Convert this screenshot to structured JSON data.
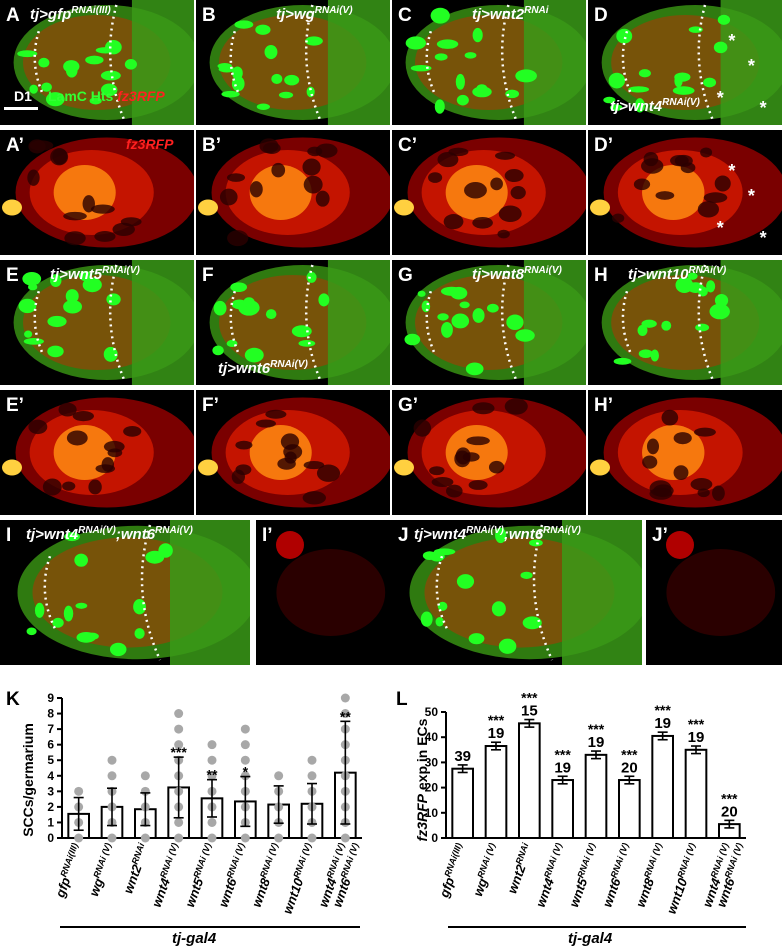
{
  "panels": [
    {
      "id": "A",
      "label": "A",
      "genotype": "tj>gfp",
      "sup": "RNAi(III)",
      "stain": true,
      "scalebar": "D1"
    },
    {
      "id": "B",
      "label": "B",
      "genotype": "tj>wg",
      "sup": "RNAi(V)"
    },
    {
      "id": "C",
      "label": "C",
      "genotype": "tj>wnt2",
      "sup": "RNAi"
    },
    {
      "id": "D",
      "label": "D",
      "genotype": "tj>wnt4",
      "sup": "RNAi(V)"
    },
    {
      "id": "A2",
      "label": "A’",
      "redlabel": "fz3RFP"
    },
    {
      "id": "B2",
      "label": "B’"
    },
    {
      "id": "C2",
      "label": "C’"
    },
    {
      "id": "D2",
      "label": "D’"
    },
    {
      "id": "E",
      "label": "E",
      "genotype": "tj>wnt5",
      "sup": "RNAi(V)"
    },
    {
      "id": "F",
      "label": "F",
      "genotype": "tj>wnt6",
      "sup": "RNAi(V)"
    },
    {
      "id": "G",
      "label": "G",
      "genotype": "tj>wnt8",
      "sup": "RNAi(V)"
    },
    {
      "id": "H",
      "label": "H",
      "genotype": "tj>wnt10",
      "sup": "RNAi(V)"
    },
    {
      "id": "E2",
      "label": "E’"
    },
    {
      "id": "F2",
      "label": "F’"
    },
    {
      "id": "G2",
      "label": "G’"
    },
    {
      "id": "H2",
      "label": "H’"
    },
    {
      "id": "I",
      "label": "I",
      "genotype": "tj>wnt4",
      "sup": "RNAi(V)",
      "genotype2": ";wnt6",
      "sup2": "RNAi(V)"
    },
    {
      "id": "I2",
      "label": "I’"
    },
    {
      "id": "J",
      "label": "J",
      "genotype": "tj>wnt4",
      "sup": "RNAi(V)",
      "genotype2": ";wnt6",
      "sup2": "RNAi(V)"
    },
    {
      "id": "J2",
      "label": "J’"
    }
  ],
  "stain_labels": {
    "lamc_hts": "LamC Hts",
    "fz3rfp": "fz3RFP"
  },
  "charts": {
    "K": {
      "label": "K",
      "ylabel": "SCCs/germarium",
      "footer": "tj-gal4"
    },
    "L": {
      "label": "L",
      "ylabel_italic": "fz3RFP",
      "ylabel_rest": " exp in ECs",
      "footer": "tj-gal4"
    }
  },
  "chart_data": [
    {
      "type": "bar",
      "panel": "K",
      "categories": [
        {
          "base": "gfp",
          "sup": "RNAi(III)"
        },
        {
          "base": "wg",
          "sup": "RNAi (V)"
        },
        {
          "base": "wnt2",
          "sup": "RNAi"
        },
        {
          "base": "wnt4",
          "sup": "RNAi (V)"
        },
        {
          "base": "wnt5",
          "sup": "RNAi (V)"
        },
        {
          "base": "wnt6",
          "sup": "RNAi (V)"
        },
        {
          "base": "wnt8",
          "sup": "RNAi (V)"
        },
        {
          "base": "wnt10",
          "sup": "RNAi (V)"
        },
        {
          "base": "wnt4/wnt6",
          "sup": "RNAi (V)"
        }
      ],
      "values": [
        1.55,
        2.0,
        1.85,
        3.25,
        2.55,
        2.35,
        2.15,
        2.2,
        4.2
      ],
      "errors": [
        1.05,
        1.2,
        1.05,
        1.95,
        1.2,
        1.6,
        1.2,
        1.3,
        3.3
      ],
      "significance": [
        "",
        "",
        "",
        "***",
        "**",
        "*",
        "",
        "",
        "**"
      ],
      "ylabel": "SCCs/germarium",
      "ylim": [
        0,
        9
      ],
      "yticks": [
        0,
        1,
        2,
        3,
        4,
        5,
        6,
        7,
        8,
        9
      ],
      "dots": [
        [
          0,
          1,
          2,
          3
        ],
        [
          0,
          1,
          2,
          3,
          4,
          5
        ],
        [
          0,
          1,
          2,
          3,
          4
        ],
        [
          0,
          1,
          2,
          3,
          4,
          5,
          6,
          7,
          8
        ],
        [
          0,
          1,
          2,
          3,
          4,
          5,
          6
        ],
        [
          0,
          1,
          2,
          3,
          4,
          5,
          6,
          7
        ],
        [
          0,
          1,
          2,
          3,
          4
        ],
        [
          0,
          1,
          2,
          3,
          4,
          5
        ],
        [
          0,
          1,
          2,
          3,
          4,
          5,
          6,
          7,
          8,
          9
        ]
      ]
    },
    {
      "type": "bar",
      "panel": "L",
      "categories": [
        {
          "base": "gfp",
          "sup": "RNAi(III)"
        },
        {
          "base": "wg",
          "sup": "RNAi (V)"
        },
        {
          "base": "wnt2",
          "sup": "RNAi"
        },
        {
          "base": "wnt4",
          "sup": "RNAi (V)"
        },
        {
          "base": "wnt5",
          "sup": "RNAi (V)"
        },
        {
          "base": "wnt6",
          "sup": "RNAi (V)"
        },
        {
          "base": "wnt8",
          "sup": "RNAi (V)"
        },
        {
          "base": "wnt10",
          "sup": "RNAi (V)"
        },
        {
          "base": "wnt4/wnt6",
          "sup": "RNAi (V)"
        }
      ],
      "values": [
        27.5,
        36.5,
        45.5,
        23,
        33,
        23,
        40.5,
        35,
        5.5
      ],
      "errors": [
        1.5,
        1.5,
        1.5,
        1.5,
        1.5,
        1.5,
        1.5,
        1.5,
        1.5
      ],
      "n": [
        "39",
        "19",
        "15",
        "19",
        "19",
        "20",
        "19",
        "19",
        "20"
      ],
      "significance": [
        "",
        "***",
        "***",
        "***",
        "***",
        "***",
        "***",
        "***",
        "***"
      ],
      "ylabel": "fz3RFP exp in ECs",
      "ylim": [
        0,
        50
      ],
      "yticks": [
        0,
        10,
        20,
        30,
        40,
        50
      ]
    }
  ]
}
